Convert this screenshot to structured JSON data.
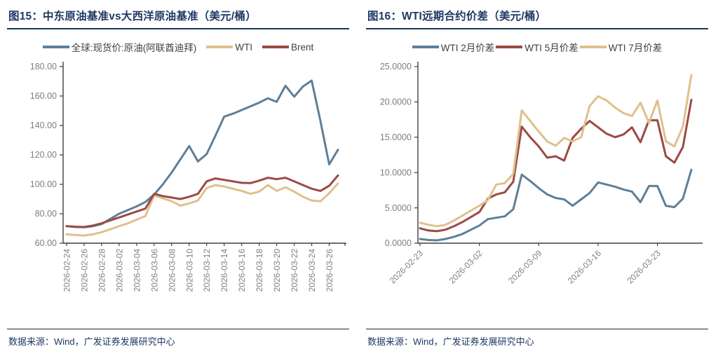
{
  "page": {
    "footer_text": "数据来源：Wind，广发证券发展研究中心"
  },
  "colors": {
    "title_navy": "#1F3864",
    "axis_line": "#404040",
    "tick_label_gray": "#7F7F7F",
    "series_blue": "#5E7F99",
    "series_tan": "#DFC08D",
    "series_red": "#9C4A45"
  },
  "chart_data": [
    {
      "type": "line",
      "title": "图15：中东原油基准vs大西洋原油基准（美元/桶）",
      "ylim": [
        60,
        180
      ],
      "ytick_step": 20,
      "y_decimals": 2,
      "grid": false,
      "legend_position": "top",
      "xlabel_rotation": 90,
      "xtick_every": 2,
      "categories": [
        "2026-02-24",
        "2026-02-25",
        "2026-02-26",
        "2026-02-27",
        "2026-02-28",
        "2026-03-01",
        "2026-03-02",
        "2026-03-03",
        "2026-03-04",
        "2026-03-05",
        "2026-03-06",
        "2026-03-07",
        "2026-03-08",
        "2026-03-09",
        "2026-03-10",
        "2026-03-11",
        "2026-03-12",
        "2026-03-13",
        "2026-03-14",
        "2026-03-15",
        "2026-03-16",
        "2026-03-17",
        "2026-03-18",
        "2026-03-19",
        "2026-03-20",
        "2026-03-21",
        "2026-03-22",
        "2026-03-23",
        "2026-03-24",
        "2026-03-25",
        "2026-03-26",
        "2026-03-27"
      ],
      "series": [
        {
          "name": "全球:现货价:原油(阿联酋迪拜)",
          "color": "#5E7F99",
          "values": [
            71.5,
            71.0,
            70.8,
            71.5,
            73.0,
            76.5,
            80.0,
            82.5,
            85.0,
            88.0,
            93.0,
            100.0,
            108.0,
            117.0,
            126.0,
            115.5,
            120.5,
            133.0,
            146.0,
            148.0,
            150.5,
            153.0,
            155.5,
            158.5,
            156.0,
            167.0,
            159.5,
            166.5,
            170.5,
            143.0,
            113.5,
            123.5
          ]
        },
        {
          "name": "WTI",
          "color": "#DFC08D",
          "values": [
            66.0,
            65.5,
            65.2,
            66.0,
            67.5,
            69.5,
            71.5,
            73.5,
            76.0,
            78.5,
            92.5,
            90.5,
            88.5,
            85.5,
            87.0,
            89.0,
            97.5,
            99.5,
            98.5,
            97.0,
            95.5,
            93.5,
            95.0,
            99.5,
            95.5,
            98.0,
            95.0,
            91.5,
            89.0,
            88.5,
            94.0,
            100.5
          ]
        },
        {
          "name": "Brent",
          "color": "#9C4A45",
          "values": [
            71.5,
            71.2,
            71.0,
            72.0,
            73.5,
            75.5,
            77.5,
            79.5,
            81.5,
            83.5,
            93.5,
            92.0,
            91.0,
            90.0,
            91.5,
            93.5,
            102.0,
            104.0,
            103.0,
            102.0,
            101.0,
            100.8,
            102.5,
            104.5,
            103.5,
            104.5,
            102.0,
            99.5,
            97.0,
            95.5,
            99.0,
            106.0
          ]
        }
      ]
    },
    {
      "type": "line",
      "title": "图16：WTI远期合约价差（美元/桶）",
      "ylim": [
        0,
        25
      ],
      "ytick_step": 5,
      "y_decimals": 4,
      "grid": false,
      "legend_position": "top",
      "xlabel_rotation": 45,
      "xtick_indices": [
        0,
        7,
        14,
        21,
        28
      ],
      "categories": [
        "2026-02-23",
        "2026-02-24",
        "2026-02-25",
        "2026-02-26",
        "2026-02-27",
        "2026-02-28",
        "2026-03-01",
        "2026-03-02",
        "2026-03-03",
        "2026-03-04",
        "2026-03-05",
        "2026-03-06",
        "2026-03-07",
        "2026-03-08",
        "2026-03-09",
        "2026-03-10",
        "2026-03-11",
        "2026-03-12",
        "2026-03-13",
        "2026-03-14",
        "2026-03-15",
        "2026-03-16",
        "2026-03-17",
        "2026-03-18",
        "2026-03-19",
        "2026-03-20",
        "2026-03-21",
        "2026-03-22",
        "2026-03-23",
        "2026-03-24",
        "2026-03-25",
        "2026-03-26",
        "2026-03-27"
      ],
      "series": [
        {
          "name": "WTI 2月价差",
          "color": "#5E7F99",
          "values": [
            0.6,
            0.45,
            0.4,
            0.6,
            0.9,
            1.3,
            1.9,
            2.5,
            3.4,
            3.6,
            3.8,
            4.8,
            9.7,
            8.8,
            7.8,
            6.9,
            6.4,
            6.2,
            5.3,
            6.2,
            7.1,
            8.6,
            8.3,
            8.0,
            7.6,
            7.3,
            5.8,
            8.1,
            8.1,
            5.3,
            5.1,
            6.3,
            10.4
          ]
        },
        {
          "name": "WTI 5月价差",
          "color": "#9C4A45",
          "values": [
            2.1,
            1.8,
            1.7,
            1.9,
            2.4,
            3.0,
            3.7,
            4.4,
            6.3,
            6.9,
            7.2,
            8.7,
            16.5,
            15.0,
            13.7,
            12.1,
            12.3,
            11.7,
            14.9,
            16.2,
            17.3,
            16.4,
            15.5,
            15.0,
            15.4,
            16.4,
            14.3,
            17.4,
            17.4,
            12.3,
            11.4,
            13.6,
            20.3
          ]
        },
        {
          "name": "WTI 7月价差",
          "color": "#DFC08D",
          "values": [
            2.9,
            2.6,
            2.4,
            2.6,
            3.2,
            3.9,
            4.6,
            5.3,
            6.1,
            8.3,
            8.5,
            9.8,
            18.8,
            17.3,
            15.8,
            14.4,
            13.8,
            14.9,
            14.4,
            15.0,
            19.4,
            20.8,
            20.2,
            19.2,
            18.4,
            18.0,
            19.9,
            17.0,
            20.2,
            14.4,
            13.7,
            16.5,
            23.8
          ]
        }
      ]
    }
  ]
}
